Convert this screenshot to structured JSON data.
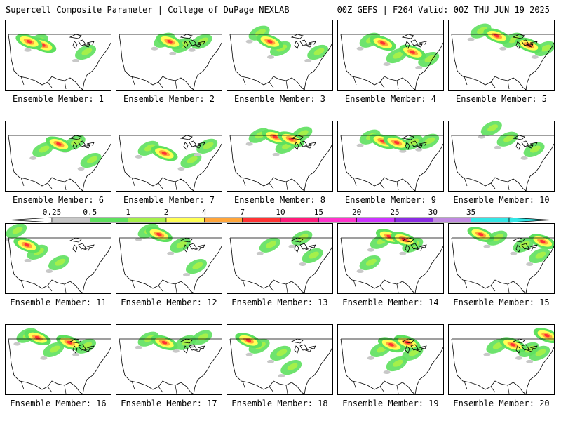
{
  "header": {
    "left": "Supercell Composite Parameter | College of DuPage NEXLAB",
    "right": "00Z GEFS | F264 Valid: 00Z THU JUN 19 2025"
  },
  "members": [
    {
      "label": "Ensemble Member: 1",
      "hot": [
        [
          0.35,
          0.35
        ],
        [
          0.22,
          0.3
        ]
      ],
      "warm": [
        [
          0.3,
          0.3
        ],
        [
          0.75,
          0.45
        ]
      ]
    },
    {
      "label": "Ensemble Member: 2",
      "hot": [
        [
          0.5,
          0.3
        ]
      ],
      "warm": [
        [
          0.45,
          0.28
        ],
        [
          0.62,
          0.35
        ],
        [
          0.8,
          0.3
        ]
      ]
    },
    {
      "label": "Ensemble Member: 3",
      "hot": [
        [
          0.4,
          0.3
        ]
      ],
      "warm": [
        [
          0.3,
          0.18
        ],
        [
          0.5,
          0.4
        ],
        [
          0.85,
          0.45
        ]
      ]
    },
    {
      "label": "Ensemble Member: 4",
      "hot": [
        [
          0.42,
          0.32
        ],
        [
          0.7,
          0.45
        ]
      ],
      "warm": [
        [
          0.3,
          0.28
        ],
        [
          0.55,
          0.5
        ],
        [
          0.85,
          0.55
        ]
      ]
    },
    {
      "label": "Ensemble Member: 5",
      "hot": [
        [
          0.45,
          0.22
        ],
        [
          0.75,
          0.35
        ]
      ],
      "warm": [
        [
          0.3,
          0.15
        ],
        [
          0.6,
          0.28
        ],
        [
          0.9,
          0.4
        ]
      ]
    },
    {
      "label": "Ensemble Member: 6",
      "hot": [
        [
          0.5,
          0.32
        ]
      ],
      "warm": [
        [
          0.35,
          0.4
        ],
        [
          0.65,
          0.3
        ],
        [
          0.8,
          0.55
        ]
      ]
    },
    {
      "label": "Ensemble Member: 7",
      "hot": [
        [
          0.45,
          0.45
        ]
      ],
      "warm": [
        [
          0.3,
          0.38
        ],
        [
          0.7,
          0.55
        ],
        [
          0.85,
          0.35
        ]
      ]
    },
    {
      "label": "Ensemble Member: 8",
      "hot": [
        [
          0.45,
          0.22
        ],
        [
          0.6,
          0.25
        ]
      ],
      "warm": [
        [
          0.3,
          0.2
        ],
        [
          0.7,
          0.18
        ],
        [
          0.55,
          0.35
        ]
      ]
    },
    {
      "label": "Ensemble Member: 9",
      "hot": [
        [
          0.42,
          0.28
        ],
        [
          0.55,
          0.3
        ]
      ],
      "warm": [
        [
          0.3,
          0.22
        ],
        [
          0.7,
          0.3
        ],
        [
          0.85,
          0.28
        ]
      ]
    },
    {
      "label": "Ensemble Member: 10",
      "hot": [],
      "warm": [
        [
          0.4,
          0.1
        ],
        [
          0.55,
          0.25
        ],
        [
          0.8,
          0.4
        ]
      ]
    },
    {
      "label": "Ensemble Member: 11",
      "hot": [
        [
          0.2,
          0.3
        ]
      ],
      "warm": [
        [
          0.1,
          0.1
        ],
        [
          0.3,
          0.4
        ],
        [
          0.5,
          0.55
        ]
      ]
    },
    {
      "label": "Ensemble Member: 12",
      "hot": [
        [
          0.4,
          0.15
        ]
      ],
      "warm": [
        [
          0.3,
          0.1
        ],
        [
          0.6,
          0.3
        ],
        [
          0.75,
          0.6
        ]
      ]
    },
    {
      "label": "Ensemble Member: 13",
      "hot": [],
      "warm": [
        [
          0.4,
          0.3
        ],
        [
          0.7,
          0.2
        ],
        [
          0.8,
          0.45
        ]
      ]
    },
    {
      "label": "Ensemble Member: 14",
      "hot": [
        [
          0.48,
          0.18
        ],
        [
          0.62,
          0.22
        ]
      ],
      "warm": [
        [
          0.4,
          0.25
        ],
        [
          0.7,
          0.3
        ],
        [
          0.3,
          0.55
        ]
      ]
    },
    {
      "label": "Ensemble Member: 15",
      "hot": [
        [
          0.3,
          0.15
        ],
        [
          0.88,
          0.25
        ]
      ],
      "warm": [
        [
          0.45,
          0.2
        ],
        [
          0.7,
          0.3
        ],
        [
          0.85,
          0.45
        ]
      ]
    },
    {
      "label": "Ensemble Member: 16",
      "hot": [
        [
          0.3,
          0.18
        ],
        [
          0.6,
          0.25
        ]
      ],
      "warm": [
        [
          0.2,
          0.15
        ],
        [
          0.75,
          0.3
        ],
        [
          0.45,
          0.35
        ]
      ]
    },
    {
      "label": "Ensemble Member: 17",
      "hot": [
        [
          0.45,
          0.25
        ]
      ],
      "warm": [
        [
          0.3,
          0.2
        ],
        [
          0.65,
          0.25
        ],
        [
          0.8,
          0.18
        ]
      ]
    },
    {
      "label": "Ensemble Member: 18",
      "hot": [
        [
          0.2,
          0.22
        ]
      ],
      "warm": [
        [
          0.3,
          0.3
        ],
        [
          0.5,
          0.4
        ],
        [
          0.6,
          0.6
        ]
      ]
    },
    {
      "label": "Ensemble Member: 19",
      "hot": [
        [
          0.5,
          0.28
        ],
        [
          0.65,
          0.25
        ]
      ],
      "warm": [
        [
          0.4,
          0.35
        ],
        [
          0.7,
          0.4
        ],
        [
          0.55,
          0.55
        ]
      ]
    },
    {
      "label": "Ensemble Member: 20",
      "hot": [
        [
          0.6,
          0.28
        ],
        [
          0.92,
          0.15
        ]
      ],
      "warm": [
        [
          0.45,
          0.3
        ],
        [
          0.75,
          0.35
        ],
        [
          0.85,
          0.4
        ]
      ]
    }
  ],
  "colorbar": {
    "levels": [
      "0.25",
      "0.5",
      "1",
      "2",
      "4",
      "7",
      "10",
      "15",
      "20",
      "25",
      "30",
      "35"
    ],
    "colors": [
      "#c8c8c8",
      "#5ee05e",
      "#a5f04a",
      "#ffff55",
      "#ffa53a",
      "#ff3333",
      "#ff1a7a",
      "#ff33cc",
      "#cc33ff",
      "#8a2be2",
      "#c08ae0",
      "#33e6e6"
    ]
  },
  "colors": {
    "green": "#5ee05e",
    "lightgreen": "#a5f04a",
    "yellow": "#ffff55",
    "orange": "#ffa53a",
    "red": "#ff3333",
    "gray": "#c8c8c8"
  }
}
